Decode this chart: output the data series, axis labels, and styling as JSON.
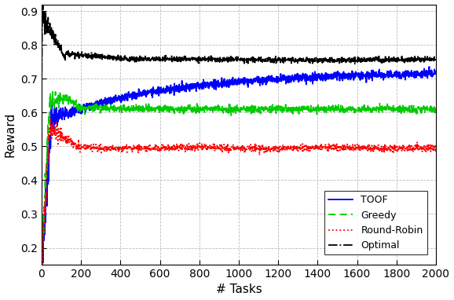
{
  "title": "",
  "xlabel": "# Tasks",
  "ylabel": "Reward",
  "xlim": [
    0,
    2000
  ],
  "ylim": [
    0.15,
    0.92
  ],
  "yticks": [
    0.2,
    0.3,
    0.4,
    0.5,
    0.6,
    0.7,
    0.8,
    0.9
  ],
  "xticks": [
    0,
    200,
    400,
    600,
    800,
    1000,
    1200,
    1400,
    1600,
    1800,
    2000
  ],
  "legend_labels": [
    "TOOF",
    "Greedy",
    "Round-Robin",
    "Optimal"
  ],
  "n_points": 2000
}
